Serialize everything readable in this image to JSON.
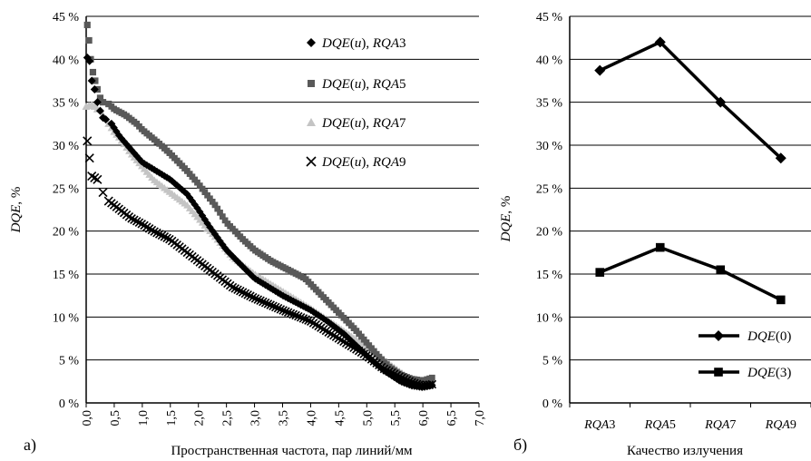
{
  "panel_labels": {
    "a": "а)",
    "b": "б)"
  },
  "chart_data": [
    {
      "type": "scatter",
      "xlabel": "Пространственная частота, пар линий/мм",
      "ylabel": "DQE, %",
      "xlim": [
        0,
        7
      ],
      "ylim": [
        0,
        45
      ],
      "x_ticks": [
        "0,0",
        "0,5",
        "1,0",
        "1,5",
        "2,0",
        "2,5",
        "3,0",
        "3,5",
        "4,0",
        "4,5",
        "5,0",
        "5,5",
        "6,0",
        "6,5",
        "7,0"
      ],
      "y_ticks": [
        "0 %",
        "5 %",
        "10 %",
        "15 %",
        "20 %",
        "25 %",
        "30 %",
        "35 %",
        "40 %",
        "45 %"
      ],
      "grid": "horizontal",
      "legend_position": "top-right",
      "series": [
        {
          "name": "DQE(u), RQA3",
          "legend": [
            "DQE(u), ",
            "RQA",
            "3"
          ],
          "marker": "diamond",
          "color": "#000000",
          "x": [
            0.02,
            0.06,
            0.1,
            0.15,
            0.2,
            0.25,
            0.3,
            0.35,
            0.45,
            0.6,
            0.8,
            1.0,
            1.2,
            1.5,
            1.8,
            2.0,
            2.2,
            2.5,
            2.8,
            3.0,
            3.5,
            4.0,
            4.3,
            4.6,
            5.0,
            5.3,
            5.6,
            5.8,
            6.0,
            6.2
          ],
          "y": [
            40.2,
            39.8,
            37.5,
            36.5,
            35.0,
            34.0,
            33.2,
            33.0,
            32.5,
            31.0,
            29.5,
            28.0,
            27.2,
            26.0,
            24.3,
            22.5,
            20.5,
            17.8,
            15.8,
            14.5,
            12.5,
            10.8,
            9.5,
            8.0,
            5.5,
            3.8,
            2.5,
            2.0,
            1.8,
            2.1
          ]
        },
        {
          "name": "DQE(u), RQA5",
          "legend": [
            "DQE(u), ",
            "RQA",
            "5"
          ],
          "marker": "square",
          "color": "#595959",
          "x": [
            0.02,
            0.05,
            0.08,
            0.12,
            0.16,
            0.2,
            0.25,
            0.3,
            0.4,
            0.5,
            0.7,
            0.9,
            1.0,
            1.3,
            1.5,
            1.8,
            2.0,
            2.3,
            2.5,
            2.8,
            3.0,
            3.3,
            3.6,
            3.9,
            4.2,
            4.5,
            4.8,
            5.0,
            5.2,
            5.4,
            5.6,
            5.8,
            6.0,
            6.2
          ],
          "y": [
            44.0,
            42.2,
            40.0,
            38.5,
            37.5,
            36.5,
            35.5,
            35.0,
            34.8,
            34.2,
            33.5,
            32.5,
            31.8,
            30.2,
            29.0,
            27.0,
            25.5,
            23.0,
            21.0,
            19.0,
            17.8,
            16.5,
            15.5,
            14.5,
            12.5,
            10.5,
            8.5,
            7.0,
            5.5,
            4.2,
            3.3,
            2.8,
            2.6,
            3.0
          ]
        },
        {
          "name": "DQE(u), RQA7",
          "legend": [
            "DQE(u), ",
            "RQA",
            "7"
          ],
          "marker": "triangle",
          "color": "#c4c4c4",
          "x": [
            0.0,
            0.05,
            0.1,
            0.15,
            0.2,
            0.3,
            0.4,
            0.5,
            0.6,
            0.8,
            1.0,
            1.2,
            1.5,
            1.8,
            2.0,
            2.3,
            2.6,
            3.0,
            3.5,
            4.0,
            4.5,
            5.0,
            5.3,
            5.6,
            5.8,
            6.0,
            6.2
          ],
          "y": [
            34.5,
            34.6,
            34.7,
            34.5,
            34.2,
            33.5,
            32.5,
            31.5,
            30.8,
            29.0,
            27.5,
            26.0,
            24.5,
            23.0,
            21.5,
            19.3,
            17.0,
            15.0,
            13.0,
            11.0,
            8.8,
            6.5,
            5.0,
            3.6,
            2.7,
            2.3,
            2.5
          ]
        },
        {
          "name": "DQE(u), RQA9",
          "legend": [
            "DQE(u), ",
            "RQA",
            "9"
          ],
          "marker": "x",
          "color": "#000000",
          "x": [
            0.02,
            0.06,
            0.1,
            0.15,
            0.2,
            0.3,
            0.4,
            0.5,
            0.6,
            0.8,
            1.0,
            1.2,
            1.5,
            1.8,
            2.0,
            2.3,
            2.6,
            3.0,
            3.5,
            4.0,
            4.5,
            5.0,
            5.3,
            5.6,
            5.8,
            6.0,
            6.2
          ],
          "y": [
            30.5,
            28.5,
            26.4,
            26.2,
            26.0,
            24.5,
            23.5,
            23.0,
            22.5,
            21.5,
            20.8,
            20.0,
            19.0,
            17.5,
            16.5,
            15.0,
            13.5,
            12.2,
            10.8,
            9.5,
            7.5,
            5.5,
            4.0,
            3.0,
            2.4,
            2.0,
            2.2
          ]
        }
      ]
    },
    {
      "type": "line",
      "xlabel": "Качество излучения",
      "ylabel": "DQE, %",
      "ylim": [
        0,
        45
      ],
      "y_ticks": [
        "0 %",
        "5 %",
        "10 %",
        "15 %",
        "20 %",
        "25 %",
        "30 %",
        "35 %",
        "40 %",
        "45 %"
      ],
      "categories": [
        "RQA3",
        "RQA5",
        "RQA7",
        "RQA9"
      ],
      "category_parts": [
        [
          "RQA",
          "3"
        ],
        [
          "RQA",
          "5"
        ],
        [
          "RQA",
          "7"
        ],
        [
          "RQA",
          "9"
        ]
      ],
      "grid": "horizontal",
      "legend_position": "bottom-right",
      "series": [
        {
          "name": "DQE(0)",
          "legend": [
            "DQE",
            "(0)"
          ],
          "marker": "diamond",
          "color": "#000000",
          "values": [
            38.7,
            42.0,
            35.0,
            28.5
          ]
        },
        {
          "name": "DQE(3)",
          "legend": [
            "DQE",
            "(3)"
          ],
          "marker": "square",
          "color": "#000000",
          "values": [
            15.2,
            18.1,
            15.5,
            12.0
          ]
        }
      ]
    }
  ]
}
